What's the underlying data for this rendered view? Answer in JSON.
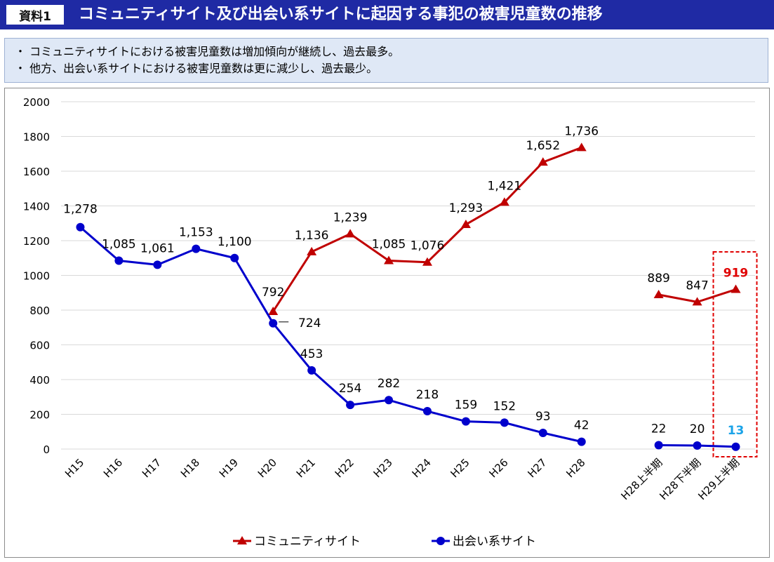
{
  "header": {
    "badge": "資料1",
    "title": "コミュニティサイト及び出会い系サイトに起因する事犯の被害児童数の推移"
  },
  "summary": {
    "lines": [
      "・ コミュニティサイトにおける被害児童数は増加傾向が継続し、過去最多。",
      "・ 他方、出会い系サイトにおける被害児童数は更に減少し、過去最少。"
    ]
  },
  "chart_data": {
    "type": "line",
    "categories": [
      "H15",
      "H16",
      "H17",
      "H18",
      "H19",
      "H20",
      "H21",
      "H22",
      "H23",
      "H24",
      "H25",
      "H26",
      "H27",
      "H28",
      "",
      "H28上半期",
      "H28下半期",
      "H29上半期"
    ],
    "ylim": [
      0,
      2000
    ],
    "yticks": [
      "0",
      "200",
      "400",
      "600",
      "800",
      "1000",
      "1200",
      "1400",
      "1600",
      "1800",
      "2000"
    ],
    "grid": true,
    "legend_position": "bottom",
    "series": [
      {
        "name": "コミュニティサイト",
        "color": "#c00000",
        "marker": "triangle",
        "values": [
          null,
          null,
          null,
          null,
          null,
          792,
          1136,
          1239,
          1085,
          1076,
          1293,
          1421,
          1652,
          1736,
          null,
          889,
          847,
          919
        ],
        "labels": [
          "",
          "",
          "",
          "",
          "",
          "792",
          "1,136",
          "1,239",
          "1,085",
          "1,076",
          "1,293",
          "1,421",
          "1,652",
          "1,736",
          "",
          "889",
          "847",
          "919"
        ]
      },
      {
        "name": "出会い系サイト",
        "color": "#0000cc",
        "marker": "circle",
        "values": [
          1278,
          1085,
          1061,
          1153,
          1100,
          724,
          453,
          254,
          282,
          218,
          159,
          152,
          93,
          42,
          null,
          22,
          20,
          13
        ],
        "labels": [
          "1,278",
          "1,085",
          "1,061",
          "1,153",
          "1,100",
          "724",
          "453",
          "254",
          "282",
          "218",
          "159",
          "152",
          "93",
          "42",
          "",
          "22",
          "20",
          "13"
        ]
      }
    ],
    "highlight": {
      "category": "H29上半期",
      "border_color": "#e00000",
      "label_colors": {
        "コミュニティサイト": "#e00000",
        "出会い系サイト": "#1aa3e8"
      }
    }
  }
}
